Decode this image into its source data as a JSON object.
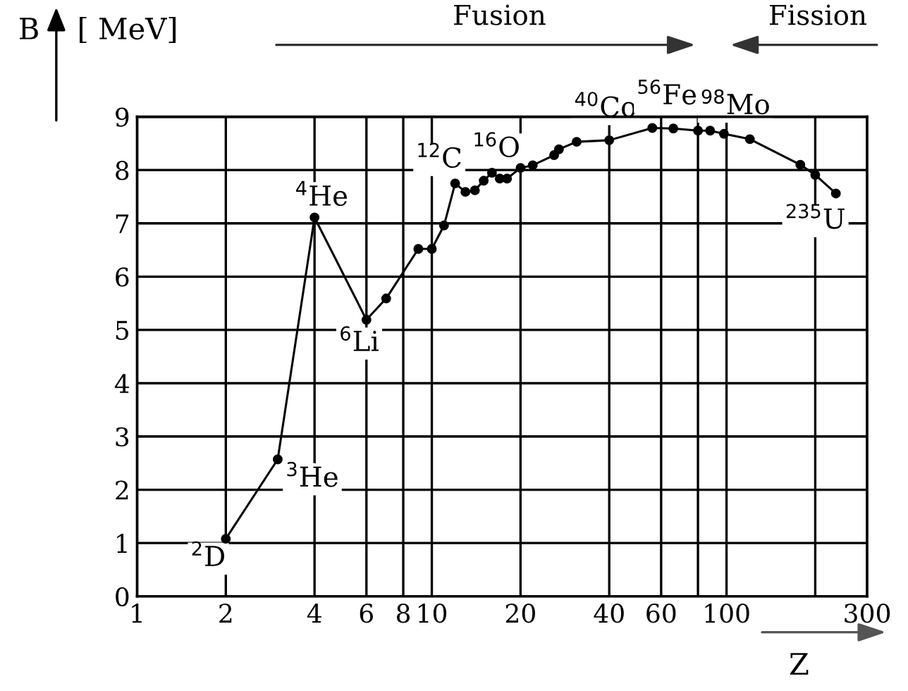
{
  "chart_data": {
    "type": "line",
    "ylabel": "B",
    "xlabel": "Z",
    "x": [
      2,
      3,
      4,
      6,
      7,
      9,
      10,
      11,
      12,
      13,
      14,
      15,
      16,
      17,
      18,
      20,
      22,
      26,
      27,
      31,
      40,
      56,
      66,
      80,
      88,
      98,
      120,
      178,
      200,
      235
    ],
    "values": [
      1.08,
      2.57,
      7.11,
      5.19,
      5.59,
      6.52,
      6.52,
      6.96,
      7.75,
      7.59,
      7.62,
      7.8,
      7.95,
      7.84,
      7.84,
      8.04,
      8.09,
      8.28,
      8.39,
      8.53,
      8.56,
      8.79,
      8.78,
      8.74,
      8.74,
      8.68,
      8.58,
      8.1,
      7.91,
      7.56
    ],
    "color": "#000000",
    "marker": "circle",
    "line_style": "solid",
    "log": "x",
    "grid": true,
    "xlim": [
      1,
      300
    ],
    "ylim": [
      0,
      9
    ],
    "xticks": [
      1,
      2,
      4,
      6,
      8,
      10,
      20,
      40,
      60,
      {
        "value": 80,
        "label": null
      },
      100,
      {
        "value": 200,
        "label": null
      },
      300
    ],
    "yticks": [
      0,
      1,
      2,
      3,
      4,
      5,
      6,
      7,
      8,
      9
    ],
    "annotations": [
      "[ MeV]",
      "Fusion",
      "Fission",
      {
        "text": "$^{2}$D",
        "x": 2,
        "y": 1.08
      },
      {
        "text": "$^{3}$He",
        "x": 3,
        "y": 2.57
      },
      {
        "text": "$^{4}$He",
        "x": 4,
        "y": 7.11
      },
      {
        "text": "$^{6}$Li",
        "x": 6,
        "y": 5.19
      },
      {
        "text": "$^{12}$C",
        "x": 12,
        "y": 7.75
      },
      {
        "text": "$^{16}$O",
        "x": 16,
        "y": 7.95
      },
      {
        "text": "$^{40}$Co",
        "x": 40,
        "y": 8.56
      },
      {
        "text": "$^{56}$Fe",
        "x": 56,
        "y": 8.79
      },
      {
        "text": "$^{98}$Mo",
        "x": 98,
        "y": 8.68
      },
      {
        "text": "$^{235}$U",
        "x": 235,
        "y": 7.56
      }
    ]
  }
}
